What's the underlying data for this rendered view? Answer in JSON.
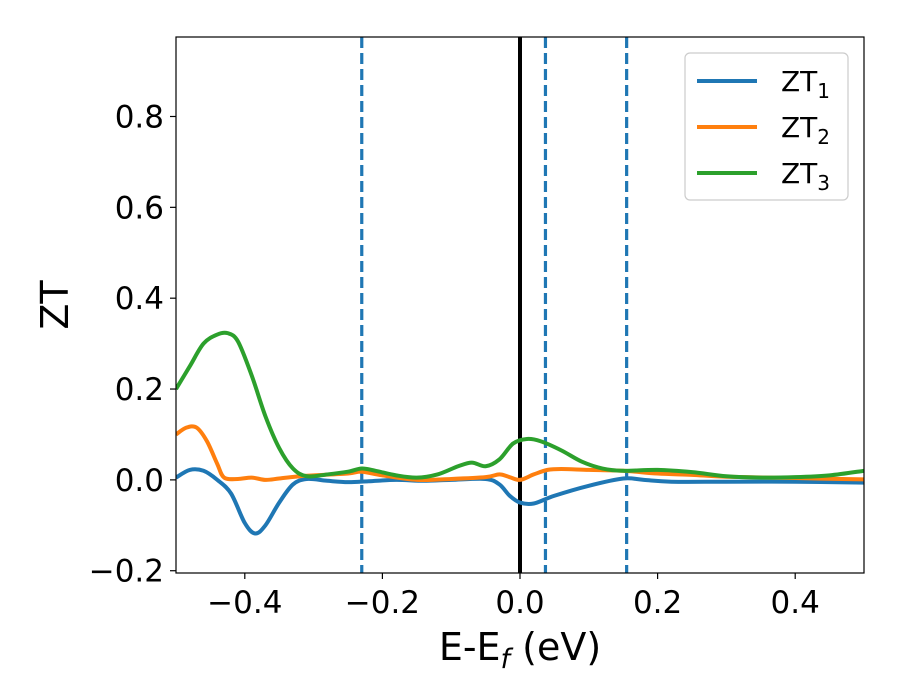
{
  "chart_data": {
    "type": "line",
    "xlabel": {
      "main": "E-E",
      "sub": "f",
      "unit": " (eV)"
    },
    "ylabel": "ZT",
    "xlim": [
      -0.5,
      0.5
    ],
    "ylim": [
      -0.205,
      0.975
    ],
    "xticks": [
      -0.4,
      -0.2,
      0.0,
      0.2,
      0.4
    ],
    "xtick_labels": [
      "−0.4",
      "−0.2",
      "0.0",
      "0.2",
      "0.4"
    ],
    "yticks": [
      -0.2,
      0.0,
      0.2,
      0.4,
      0.6,
      0.8
    ],
    "ytick_labels": [
      "−0.2",
      "0.0",
      "0.2",
      "0.4",
      "0.6",
      "0.8"
    ],
    "grid": false,
    "legend_position": "top-right",
    "reference_lines": [
      {
        "x": -0.23,
        "style": "dashed",
        "color": "#1f77b4"
      },
      {
        "x": 0.0,
        "style": "solid",
        "color": "#000000"
      },
      {
        "x": 0.037,
        "style": "dashed",
        "color": "#1f77b4"
      },
      {
        "x": 0.155,
        "style": "dashed",
        "color": "#1f77b4"
      }
    ],
    "series": [
      {
        "name": "ZT",
        "sub": "1",
        "color": "#1f77b4",
        "points": [
          [
            -0.5,
            0.005
          ],
          [
            -0.48,
            0.022
          ],
          [
            -0.46,
            0.02
          ],
          [
            -0.44,
            0.0
          ],
          [
            -0.42,
            -0.03
          ],
          [
            -0.4,
            -0.095
          ],
          [
            -0.385,
            -0.118
          ],
          [
            -0.37,
            -0.1
          ],
          [
            -0.35,
            -0.05
          ],
          [
            -0.33,
            -0.01
          ],
          [
            -0.31,
            0.002
          ],
          [
            -0.28,
            -0.002
          ],
          [
            -0.25,
            -0.005
          ],
          [
            -0.22,
            -0.003
          ],
          [
            -0.18,
            0.0
          ],
          [
            -0.14,
            -0.002
          ],
          [
            -0.1,
            0.0
          ],
          [
            -0.05,
            0.002
          ],
          [
            -0.03,
            -0.01
          ],
          [
            -0.015,
            -0.035
          ],
          [
            0.0,
            -0.05
          ],
          [
            0.02,
            -0.052
          ],
          [
            0.05,
            -0.035
          ],
          [
            0.1,
            -0.013
          ],
          [
            0.15,
            0.003
          ],
          [
            0.18,
            0.0
          ],
          [
            0.22,
            -0.004
          ],
          [
            0.3,
            -0.004
          ],
          [
            0.4,
            -0.004
          ],
          [
            0.5,
            -0.006
          ]
        ]
      },
      {
        "name": "ZT",
        "sub": "2",
        "color": "#ff7f0e",
        "points": [
          [
            -0.5,
            0.1
          ],
          [
            -0.485,
            0.115
          ],
          [
            -0.47,
            0.115
          ],
          [
            -0.455,
            0.085
          ],
          [
            -0.44,
            0.035
          ],
          [
            -0.43,
            0.005
          ],
          [
            -0.41,
            0.002
          ],
          [
            -0.39,
            0.005
          ],
          [
            -0.37,
            0.0
          ],
          [
            -0.35,
            0.003
          ],
          [
            -0.32,
            0.008
          ],
          [
            -0.3,
            0.01
          ],
          [
            -0.25,
            0.014
          ],
          [
            -0.23,
            0.018
          ],
          [
            -0.2,
            0.01
          ],
          [
            -0.15,
            0.0
          ],
          [
            -0.1,
            0.002
          ],
          [
            -0.05,
            0.006
          ],
          [
            -0.03,
            0.012
          ],
          [
            -0.015,
            0.006
          ],
          [
            0.0,
            0.0
          ],
          [
            0.02,
            0.012
          ],
          [
            0.04,
            0.022
          ],
          [
            0.06,
            0.024
          ],
          [
            0.1,
            0.022
          ],
          [
            0.15,
            0.02
          ],
          [
            0.2,
            0.014
          ],
          [
            0.25,
            0.011
          ],
          [
            0.3,
            0.007
          ],
          [
            0.4,
            0.004
          ],
          [
            0.5,
            0.001
          ]
        ]
      },
      {
        "name": "ZT",
        "sub": "3",
        "color": "#2ca02c",
        "points": [
          [
            -0.5,
            0.2
          ],
          [
            -0.48,
            0.25
          ],
          [
            -0.46,
            0.3
          ],
          [
            -0.44,
            0.32
          ],
          [
            -0.425,
            0.323
          ],
          [
            -0.41,
            0.305
          ],
          [
            -0.39,
            0.23
          ],
          [
            -0.37,
            0.14
          ],
          [
            -0.35,
            0.07
          ],
          [
            -0.33,
            0.025
          ],
          [
            -0.31,
            0.008
          ],
          [
            -0.28,
            0.012
          ],
          [
            -0.25,
            0.018
          ],
          [
            -0.23,
            0.025
          ],
          [
            -0.21,
            0.02
          ],
          [
            -0.18,
            0.01
          ],
          [
            -0.15,
            0.005
          ],
          [
            -0.12,
            0.012
          ],
          [
            -0.09,
            0.03
          ],
          [
            -0.07,
            0.038
          ],
          [
            -0.05,
            0.03
          ],
          [
            -0.03,
            0.045
          ],
          [
            -0.01,
            0.08
          ],
          [
            0.01,
            0.09
          ],
          [
            0.03,
            0.085
          ],
          [
            0.06,
            0.065
          ],
          [
            0.09,
            0.04
          ],
          [
            0.12,
            0.025
          ],
          [
            0.15,
            0.02
          ],
          [
            0.2,
            0.022
          ],
          [
            0.25,
            0.017
          ],
          [
            0.3,
            0.008
          ],
          [
            0.35,
            0.005
          ],
          [
            0.4,
            0.006
          ],
          [
            0.45,
            0.01
          ],
          [
            0.5,
            0.02
          ]
        ]
      }
    ]
  }
}
